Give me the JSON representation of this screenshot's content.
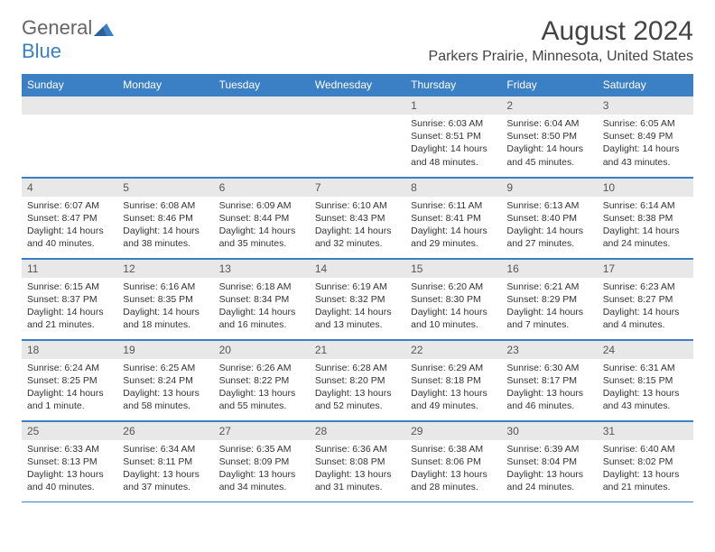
{
  "logo": {
    "text_general": "General",
    "text_blue": "Blue"
  },
  "title": "August 2024",
  "location": "Parkers Prairie, Minnesota, United States",
  "accent_color": "#3b7fc4",
  "daynum_bg": "#e8e8e8",
  "days_of_week": [
    "Sunday",
    "Monday",
    "Tuesday",
    "Wednesday",
    "Thursday",
    "Friday",
    "Saturday"
  ],
  "weeks": [
    [
      null,
      null,
      null,
      null,
      {
        "n": "1",
        "sr": "6:03 AM",
        "ss": "8:51 PM",
        "dl": "14 hours and 48 minutes."
      },
      {
        "n": "2",
        "sr": "6:04 AM",
        "ss": "8:50 PM",
        "dl": "14 hours and 45 minutes."
      },
      {
        "n": "3",
        "sr": "6:05 AM",
        "ss": "8:49 PM",
        "dl": "14 hours and 43 minutes."
      }
    ],
    [
      {
        "n": "4",
        "sr": "6:07 AM",
        "ss": "8:47 PM",
        "dl": "14 hours and 40 minutes."
      },
      {
        "n": "5",
        "sr": "6:08 AM",
        "ss": "8:46 PM",
        "dl": "14 hours and 38 minutes."
      },
      {
        "n": "6",
        "sr": "6:09 AM",
        "ss": "8:44 PM",
        "dl": "14 hours and 35 minutes."
      },
      {
        "n": "7",
        "sr": "6:10 AM",
        "ss": "8:43 PM",
        "dl": "14 hours and 32 minutes."
      },
      {
        "n": "8",
        "sr": "6:11 AM",
        "ss": "8:41 PM",
        "dl": "14 hours and 29 minutes."
      },
      {
        "n": "9",
        "sr": "6:13 AM",
        "ss": "8:40 PM",
        "dl": "14 hours and 27 minutes."
      },
      {
        "n": "10",
        "sr": "6:14 AM",
        "ss": "8:38 PM",
        "dl": "14 hours and 24 minutes."
      }
    ],
    [
      {
        "n": "11",
        "sr": "6:15 AM",
        "ss": "8:37 PM",
        "dl": "14 hours and 21 minutes."
      },
      {
        "n": "12",
        "sr": "6:16 AM",
        "ss": "8:35 PM",
        "dl": "14 hours and 18 minutes."
      },
      {
        "n": "13",
        "sr": "6:18 AM",
        "ss": "8:34 PM",
        "dl": "14 hours and 16 minutes."
      },
      {
        "n": "14",
        "sr": "6:19 AM",
        "ss": "8:32 PM",
        "dl": "14 hours and 13 minutes."
      },
      {
        "n": "15",
        "sr": "6:20 AM",
        "ss": "8:30 PM",
        "dl": "14 hours and 10 minutes."
      },
      {
        "n": "16",
        "sr": "6:21 AM",
        "ss": "8:29 PM",
        "dl": "14 hours and 7 minutes."
      },
      {
        "n": "17",
        "sr": "6:23 AM",
        "ss": "8:27 PM",
        "dl": "14 hours and 4 minutes."
      }
    ],
    [
      {
        "n": "18",
        "sr": "6:24 AM",
        "ss": "8:25 PM",
        "dl": "14 hours and 1 minute."
      },
      {
        "n": "19",
        "sr": "6:25 AM",
        "ss": "8:24 PM",
        "dl": "13 hours and 58 minutes."
      },
      {
        "n": "20",
        "sr": "6:26 AM",
        "ss": "8:22 PM",
        "dl": "13 hours and 55 minutes."
      },
      {
        "n": "21",
        "sr": "6:28 AM",
        "ss": "8:20 PM",
        "dl": "13 hours and 52 minutes."
      },
      {
        "n": "22",
        "sr": "6:29 AM",
        "ss": "8:18 PM",
        "dl": "13 hours and 49 minutes."
      },
      {
        "n": "23",
        "sr": "6:30 AM",
        "ss": "8:17 PM",
        "dl": "13 hours and 46 minutes."
      },
      {
        "n": "24",
        "sr": "6:31 AM",
        "ss": "8:15 PM",
        "dl": "13 hours and 43 minutes."
      }
    ],
    [
      {
        "n": "25",
        "sr": "6:33 AM",
        "ss": "8:13 PM",
        "dl": "13 hours and 40 minutes."
      },
      {
        "n": "26",
        "sr": "6:34 AM",
        "ss": "8:11 PM",
        "dl": "13 hours and 37 minutes."
      },
      {
        "n": "27",
        "sr": "6:35 AM",
        "ss": "8:09 PM",
        "dl": "13 hours and 34 minutes."
      },
      {
        "n": "28",
        "sr": "6:36 AM",
        "ss": "8:08 PM",
        "dl": "13 hours and 31 minutes."
      },
      {
        "n": "29",
        "sr": "6:38 AM",
        "ss": "8:06 PM",
        "dl": "13 hours and 28 minutes."
      },
      {
        "n": "30",
        "sr": "6:39 AM",
        "ss": "8:04 PM",
        "dl": "13 hours and 24 minutes."
      },
      {
        "n": "31",
        "sr": "6:40 AM",
        "ss": "8:02 PM",
        "dl": "13 hours and 21 minutes."
      }
    ]
  ],
  "labels": {
    "sunrise": "Sunrise:",
    "sunset": "Sunset:",
    "daylight": "Daylight:"
  }
}
